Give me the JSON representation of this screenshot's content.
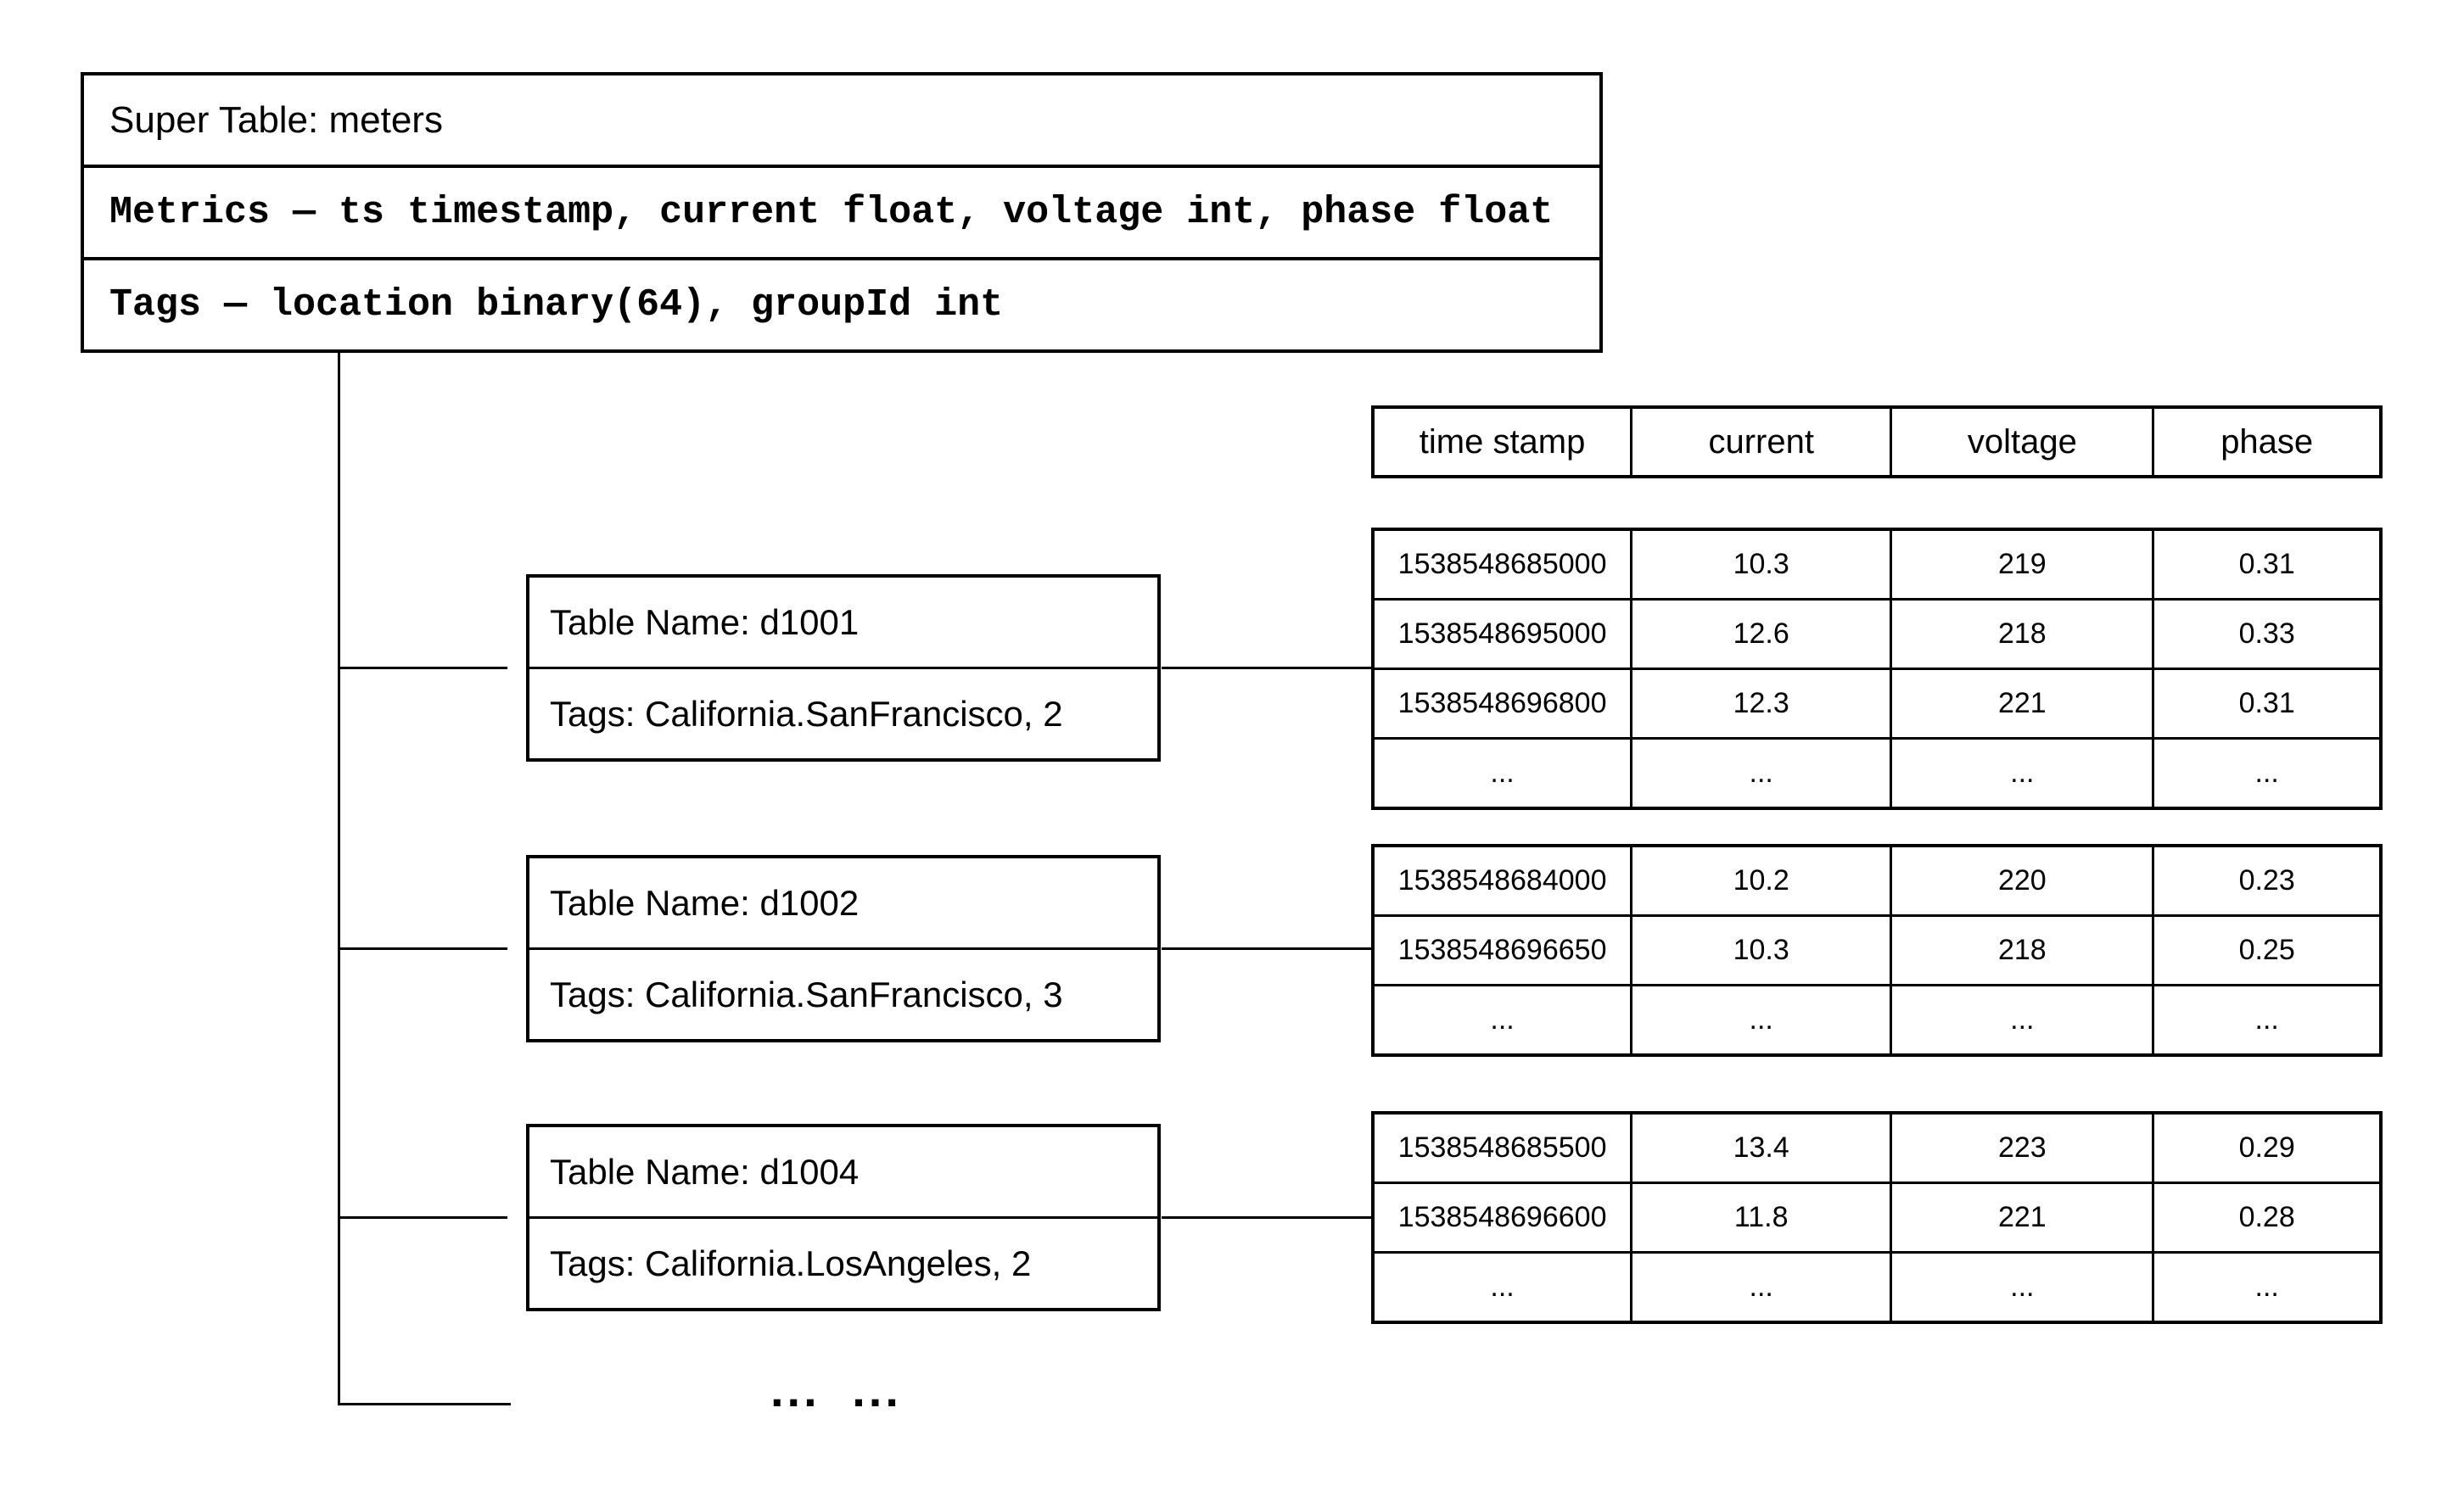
{
  "diagram": {
    "super_table": {
      "title": "Super Table: meters",
      "metrics_line": "Metrics — ts timestamp, current float, voltage int, phase float",
      "tags_line": "Tags — location binary(64), groupId int"
    },
    "data_column_headers": [
      "time stamp",
      "current",
      "voltage",
      "phase"
    ],
    "sub_tables": [
      {
        "name_label": "Table Name: d1001",
        "tags_label": "Tags: California.SanFrancisco, 2",
        "rows": [
          [
            "1538548685000",
            "10.3",
            "219",
            "0.31"
          ],
          [
            "1538548695000",
            "12.6",
            "218",
            "0.33"
          ],
          [
            "1538548696800",
            "12.3",
            "221",
            "0.31"
          ],
          [
            "...",
            "...",
            "...",
            "..."
          ]
        ]
      },
      {
        "name_label": "Table Name: d1002",
        "tags_label": "Tags: California.SanFrancisco, 3",
        "rows": [
          [
            "1538548684000",
            "10.2",
            "220",
            "0.23"
          ],
          [
            "1538548696650",
            "10.3",
            "218",
            "0.25"
          ],
          [
            "...",
            "...",
            "...",
            "..."
          ]
        ]
      },
      {
        "name_label": "Table Name: d1004",
        "tags_label": "Tags: California.LosAngeles, 2",
        "rows": [
          [
            "1538548685500",
            "13.4",
            "223",
            "0.29"
          ],
          [
            "1538548696600",
            "11.8",
            "221",
            "0.28"
          ],
          [
            "...",
            "...",
            "...",
            "..."
          ]
        ]
      }
    ],
    "more_tables_ellipsis": "... ...",
    "colors": {
      "line": "#000000",
      "background": "#ffffff",
      "text": "#000000"
    }
  }
}
